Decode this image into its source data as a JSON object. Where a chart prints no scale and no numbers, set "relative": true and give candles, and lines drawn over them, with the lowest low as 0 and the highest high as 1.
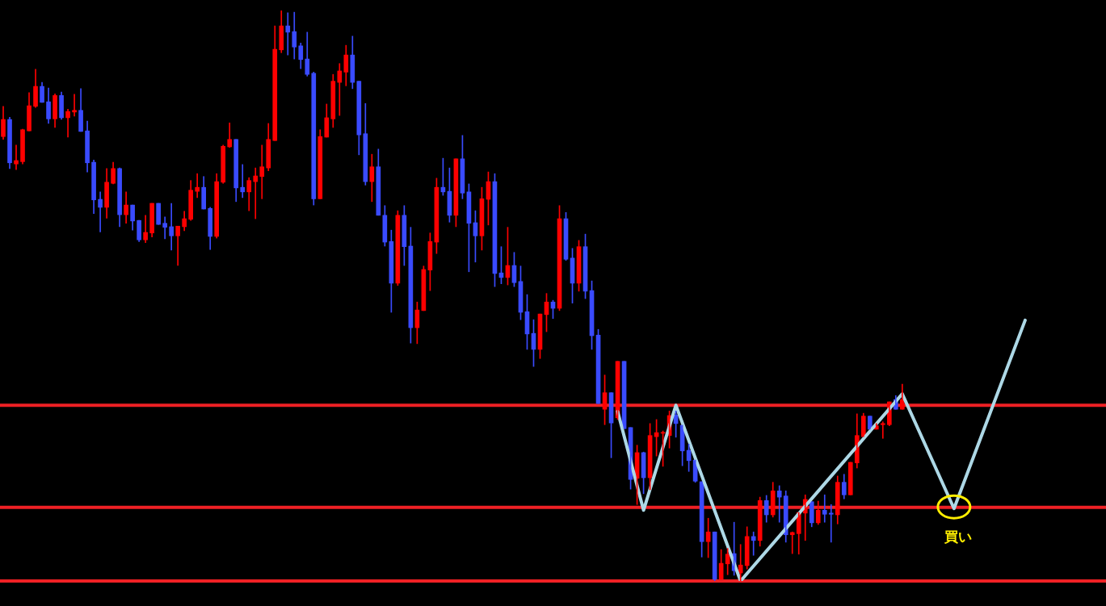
{
  "chart_data": {
    "type": "candlestick",
    "relative": true,
    "categories": [
      null,
      null,
      null,
      null,
      null,
      null,
      null,
      null,
      null,
      null,
      null,
      null,
      null,
      null,
      null,
      null,
      null,
      null,
      null,
      null,
      null,
      null,
      null,
      null,
      null,
      null,
      null,
      null,
      null,
      null,
      null,
      null,
      null,
      null,
      null,
      null,
      null,
      null,
      null,
      null,
      null,
      null,
      null,
      null,
      null,
      null,
      null,
      null,
      null,
      null,
      null,
      null,
      null,
      null,
      null,
      null,
      null,
      null,
      null,
      null,
      null,
      null,
      null,
      null,
      null,
      null,
      null,
      null,
      null,
      null,
      null,
      null,
      null,
      null,
      null,
      null,
      null,
      null,
      null,
      null,
      null,
      null,
      null,
      null,
      null,
      null,
      null,
      null,
      null,
      null,
      null,
      null,
      null,
      null,
      null,
      null,
      null,
      null,
      null,
      null,
      null,
      null,
      null,
      null,
      null,
      null,
      null,
      null,
      null,
      null,
      null,
      null,
      null,
      null,
      null,
      null,
      null,
      null,
      null,
      null,
      null,
      null,
      null,
      null,
      null,
      null,
      null,
      null,
      null,
      null,
      null,
      null,
      null,
      null,
      null,
      null,
      null,
      null,
      null,
      null,
      null,
      null,
      null,
      null,
      null,
      null,
      null,
      null,
      null,
      null,
      null,
      null,
      null,
      null,
      null,
      null,
      null,
      null,
      null,
      null,
      null,
      null,
      null,
      null,
      null,
      null,
      null,
      null,
      null,
      null,
      null
    ],
    "ohlc": [
      [
        0.779,
        0.832,
        0.774,
        0.809
      ],
      [
        0.809,
        0.813,
        0.723,
        0.733
      ],
      [
        0.731,
        0.764,
        0.721,
        0.737
      ],
      [
        0.735,
        0.792,
        0.731,
        0.791
      ],
      [
        0.789,
        0.856,
        0.789,
        0.833
      ],
      [
        0.832,
        0.897,
        0.83,
        0.867
      ],
      [
        0.867,
        0.874,
        0.839,
        0.839
      ],
      [
        0.84,
        0.864,
        0.802,
        0.81
      ],
      [
        0.81,
        0.854,
        0.795,
        0.851
      ],
      [
        0.851,
        0.857,
        0.809,
        0.812
      ],
      [
        0.812,
        0.827,
        0.778,
        0.823
      ],
      [
        0.822,
        0.853,
        0.815,
        0.825
      ],
      [
        0.825,
        0.863,
        0.788,
        0.788
      ],
      [
        0.789,
        0.806,
        0.717,
        0.733
      ],
      [
        0.734,
        0.738,
        0.644,
        0.668
      ],
      [
        0.669,
        0.682,
        0.612,
        0.655
      ],
      [
        0.655,
        0.723,
        0.636,
        0.699
      ],
      [
        0.697,
        0.734,
        0.696,
        0.723
      ],
      [
        0.723,
        0.724,
        0.621,
        0.642
      ],
      [
        0.642,
        0.682,
        0.627,
        0.659
      ],
      [
        0.659,
        0.659,
        0.615,
        0.631
      ],
      [
        0.632,
        0.632,
        0.595,
        0.598
      ],
      [
        0.598,
        0.641,
        0.593,
        0.611
      ],
      [
        0.61,
        0.662,
        0.603,
        0.662
      ],
      [
        0.662,
        0.662,
        0.625,
        0.625
      ],
      [
        0.627,
        0.638,
        0.6,
        0.62
      ],
      [
        0.621,
        0.662,
        0.58,
        0.605
      ],
      [
        0.605,
        0.622,
        0.553,
        0.622
      ],
      [
        0.621,
        0.648,
        0.614,
        0.635
      ],
      [
        0.634,
        0.702,
        0.632,
        0.685
      ],
      [
        0.683,
        0.714,
        0.672,
        0.69
      ],
      [
        0.69,
        0.709,
        0.652,
        0.652
      ],
      [
        0.653,
        0.655,
        0.581,
        0.604
      ],
      [
        0.604,
        0.714,
        0.601,
        0.7
      ],
      [
        0.699,
        0.764,
        0.697,
        0.762
      ],
      [
        0.761,
        0.803,
        0.76,
        0.774
      ],
      [
        0.774,
        0.774,
        0.665,
        0.689
      ],
      [
        0.69,
        0.73,
        0.672,
        0.682
      ],
      [
        0.682,
        0.707,
        0.649,
        0.702
      ],
      [
        0.7,
        0.724,
        0.635,
        0.71
      ],
      [
        0.709,
        0.764,
        0.67,
        0.726
      ],
      [
        0.724,
        0.802,
        0.719,
        0.774
      ],
      [
        0.772,
        0.973,
        0.772,
        0.932
      ],
      [
        0.931,
        1,
        0.926,
        0.973
      ],
      [
        0.973,
        0.996,
        0.922,
        0.962
      ],
      [
        0.963,
        0.997,
        0.915,
        0.936
      ],
      [
        0.938,
        0.943,
        0.898,
        0.914
      ],
      [
        0.915,
        0.962,
        0.885,
        0.888
      ],
      [
        0.89,
        0.892,
        0.659,
        0.67
      ],
      [
        0.67,
        0.791,
        0.67,
        0.779
      ],
      [
        0.778,
        0.836,
        0.778,
        0.812
      ],
      [
        0.81,
        0.888,
        0.795,
        0.876
      ],
      [
        0.874,
        0.907,
        0.816,
        0.894
      ],
      [
        0.892,
        0.939,
        0.868,
        0.922
      ],
      [
        0.922,
        0.955,
        0.863,
        0.874
      ],
      [
        0.876,
        0.876,
        0.747,
        0.782
      ],
      [
        0.784,
        0.837,
        0.694,
        0.7
      ],
      [
        0.7,
        0.748,
        0.665,
        0.726
      ],
      [
        0.726,
        0.757,
        0.641,
        0.641
      ],
      [
        0.641,
        0.658,
        0.587,
        0.594
      ],
      [
        0.595,
        0.615,
        0.471,
        0.522
      ],
      [
        0.522,
        0.649,
        0.518,
        0.641
      ],
      [
        0.641,
        0.658,
        0.553,
        0.586
      ],
      [
        0.587,
        0.62,
        0.417,
        0.444
      ],
      [
        0.444,
        0.489,
        0.416,
        0.475
      ],
      [
        0.474,
        0.552,
        0.474,
        0.546
      ],
      [
        0.545,
        0.61,
        0.509,
        0.595
      ],
      [
        0.594,
        0.706,
        0.574,
        0.69
      ],
      [
        0.69,
        0.741,
        0.676,
        0.682
      ],
      [
        0.683,
        0.724,
        0.629,
        0.641
      ],
      [
        0.641,
        0.74,
        0.621,
        0.74
      ],
      [
        0.74,
        0.781,
        0.67,
        0.68
      ],
      [
        0.682,
        0.696,
        0.542,
        0.627
      ],
      [
        0.628,
        0.649,
        0.559,
        0.605
      ],
      [
        0.605,
        0.69,
        0.58,
        0.67
      ],
      [
        0.669,
        0.717,
        0.624,
        0.7
      ],
      [
        0.7,
        0.714,
        0.516,
        0.539
      ],
      [
        0.54,
        0.586,
        0.521,
        0.532
      ],
      [
        0.532,
        0.62,
        0.519,
        0.553
      ],
      [
        0.553,
        0.576,
        0.516,
        0.523
      ],
      [
        0.525,
        0.552,
        0.458,
        0.471
      ],
      [
        0.472,
        0.502,
        0.406,
        0.433
      ],
      [
        0.434,
        0.458,
        0.376,
        0.406
      ],
      [
        0.406,
        0.468,
        0.39,
        0.468
      ],
      [
        0.467,
        0.504,
        0.437,
        0.489
      ],
      [
        0.489,
        0.492,
        0.46,
        0.478
      ],
      [
        0.478,
        0.658,
        0.474,
        0.635
      ],
      [
        0.635,
        0.646,
        0.562,
        0.564
      ],
      [
        0.566,
        0.583,
        0.487,
        0.522
      ],
      [
        0.522,
        0.597,
        0.508,
        0.586
      ],
      [
        0.586,
        0.608,
        0.495,
        0.508
      ],
      [
        0.509,
        0.526,
        0.406,
        0.43
      ],
      [
        0.431,
        0.441,
        0.311,
        0.311
      ],
      [
        0.301,
        0.361,
        0.274,
        0.33
      ],
      [
        0.33,
        0.33,
        0.216,
        0.277
      ],
      [
        0.286,
        0.385,
        0.283,
        0.385
      ],
      [
        0.385,
        0.385,
        0.267,
        0.267
      ],
      [
        0.269,
        0.269,
        0.161,
        0.178
      ],
      [
        0.18,
        0.238,
        0.134,
        0.225
      ],
      [
        0.225,
        0.226,
        0.153,
        0.181
      ],
      [
        0.181,
        0.276,
        0.16,
        0.255
      ],
      [
        0.253,
        0.283,
        0.219,
        0.26
      ],
      [
        0.259,
        0.263,
        0.201,
        0.26
      ],
      [
        0.255,
        0.298,
        0.233,
        0.29
      ],
      [
        0.291,
        0.298,
        0.252,
        0.276
      ],
      [
        0.273,
        0.273,
        0.202,
        0.228
      ],
      [
        0.229,
        0.24,
        0.192,
        0.211
      ],
      [
        0.212,
        0.212,
        0.173,
        0.175
      ],
      [
        0.174,
        0.174,
        0.042,
        0.069
      ],
      [
        0.069,
        0.11,
        0.041,
        0.086
      ],
      [
        0.086,
        0.086,
        0,
        0.003
      ],
      [
        0.003,
        0.055,
        0.003,
        0.031
      ],
      [
        0.03,
        0.057,
        0.011,
        0.047
      ],
      [
        0.048,
        0.103,
        0.01,
        0.018
      ],
      [
        0.014,
        0.064,
        0,
        0.028
      ],
      [
        0.027,
        0.095,
        0.021,
        0.078
      ],
      [
        0.078,
        0.086,
        0.045,
        0.071
      ],
      [
        0.071,
        0.147,
        0.061,
        0.141
      ],
      [
        0.141,
        0.15,
        0.103,
        0.116
      ],
      [
        0.116,
        0.173,
        0.112,
        0.158
      ],
      [
        0.158,
        0.167,
        0.103,
        0.147
      ],
      [
        0.149,
        0.158,
        0.068,
        0.081
      ],
      [
        0.081,
        0.086,
        0.048,
        0.085
      ],
      [
        0.083,
        0.12,
        0.047,
        0.12
      ],
      [
        0.119,
        0.151,
        0.071,
        0.143
      ],
      [
        0.139,
        0.139,
        0.095,
        0.102
      ],
      [
        0.102,
        0.14,
        0.099,
        0.124
      ],
      [
        0.124,
        0.151,
        0.103,
        0.117
      ],
      [
        0.119,
        0.134,
        0.068,
        0.117
      ],
      [
        0.116,
        0.184,
        0.1,
        0.173
      ],
      [
        0.173,
        0.187,
        0.144,
        0.151
      ],
      [
        0.151,
        0.208,
        0.151,
        0.208
      ],
      [
        0.207,
        0.293,
        0.198,
        0.255
      ],
      [
        0.253,
        0.294,
        0.253,
        0.289
      ],
      [
        0.289,
        0.289,
        0.266,
        0.266
      ],
      [
        0.266,
        0.276,
        0.266,
        0.272
      ],
      [
        0.274,
        0.279,
        0.25,
        0.276
      ],
      [
        0.274,
        0.314,
        0.272,
        0.314
      ],
      [
        0.318,
        0.325,
        0.301,
        0.301
      ],
      [
        0.301,
        0.345,
        0.301,
        0.318
      ],
      null,
      null,
      null,
      null,
      null,
      null,
      null,
      null,
      null,
      null,
      null,
      null,
      null,
      null,
      null,
      null,
      null,
      null,
      null,
      null,
      null,
      null,
      null,
      null,
      null,
      null,
      null,
      null,
      null,
      null,
      null
    ],
    "colors": [
      "#ff0000",
      "#3a4bff",
      "#ff0000",
      "#ff0000",
      "#ff0000",
      "#ff0000",
      "#3a4bff",
      "#3a4bff",
      "#ff0000",
      "#3a4bff",
      "#ff0000",
      "#ff0000",
      "#3a4bff",
      "#3a4bff",
      "#3a4bff",
      "#3a4bff",
      "#ff0000",
      "#ff0000",
      "#3a4bff",
      "#ff0000",
      "#3a4bff",
      "#3a4bff",
      "#ff0000",
      "#ff0000",
      "#3a4bff",
      "#3a4bff",
      "#3a4bff",
      "#ff0000",
      "#ff0000",
      "#ff0000",
      "#ff0000",
      "#3a4bff",
      "#3a4bff",
      "#ff0000",
      "#ff0000",
      "#ff0000",
      "#3a4bff",
      "#3a4bff",
      "#ff0000",
      "#ff0000",
      "#ff0000",
      "#ff0000",
      "#ff0000",
      "#ff0000",
      "#3a4bff",
      "#3a4bff",
      "#3a4bff",
      "#3a4bff",
      "#3a4bff",
      "#ff0000",
      "#ff0000",
      "#ff0000",
      "#ff0000",
      "#ff0000",
      "#3a4bff",
      "#3a4bff",
      "#3a4bff",
      "#ff0000",
      "#3a4bff",
      "#3a4bff",
      "#3a4bff",
      "#ff0000",
      "#3a4bff",
      "#3a4bff",
      "#ff0000",
      "#ff0000",
      "#ff0000",
      "#ff0000",
      "#3a4bff",
      "#3a4bff",
      "#ff0000",
      "#3a4bff",
      "#3a4bff",
      "#3a4bff",
      "#ff0000",
      "#ff0000",
      "#3a4bff",
      "#3a4bff",
      "#ff0000",
      "#3a4bff",
      "#3a4bff",
      "#3a4bff",
      "#3a4bff",
      "#ff0000",
      "#ff0000",
      "#3a4bff",
      "#ff0000",
      "#3a4bff",
      "#3a4bff",
      "#ff0000",
      "#3a4bff",
      "#3a4bff",
      "#3a4bff",
      "#ff0000",
      "#3a4bff",
      "#ff0000",
      "#3a4bff",
      "#3a4bff",
      "#ff0000",
      "#3a4bff",
      "#ff0000",
      "#ff0000",
      "#ff0000",
      "#ff0000",
      "#3a4bff",
      "#3a4bff",
      "#3a4bff",
      "#3a4bff",
      "#3a4bff",
      "#ff0000",
      "#3a4bff",
      "#ff0000",
      "#ff0000",
      "#3a4bff",
      "#ff0000",
      "#ff0000",
      "#3a4bff",
      "#ff0000",
      "#3a4bff",
      "#ff0000",
      "#3a4bff",
      "#3a4bff",
      "#ff0000",
      "#ff0000",
      "#ff0000",
      "#3a4bff",
      "#ff0000",
      "#3a4bff",
      "#3a4bff",
      "#ff0000",
      "#3a4bff",
      "#ff0000",
      "#ff0000",
      "#ff0000",
      "#3a4bff",
      "#ff0000",
      "#ff0000",
      "#ff0000",
      "#3a4bff",
      "#ff0000",
      null,
      null,
      null,
      null,
      null,
      null,
      null,
      null,
      null,
      null,
      null,
      null,
      null,
      null,
      null,
      null,
      null,
      null,
      null,
      null,
      null,
      null,
      null,
      null,
      null,
      null,
      null,
      null,
      null,
      null,
      null
    ],
    "series": [
      {
        "type": "line",
        "color": "#add8e6",
        "values": [
          null,
          null,
          null,
          null,
          null,
          null,
          null,
          null,
          null,
          null,
          null,
          null,
          null,
          null,
          null,
          null,
          null,
          null,
          null,
          null,
          null,
          null,
          null,
          null,
          null,
          null,
          null,
          null,
          null,
          null,
          null,
          null,
          null,
          null,
          null,
          null,
          null,
          null,
          null,
          null,
          null,
          null,
          null,
          null,
          null,
          null,
          null,
          null,
          null,
          null,
          null,
          null,
          null,
          null,
          null,
          null,
          null,
          null,
          null,
          null,
          null,
          null,
          null,
          null,
          null,
          null,
          null,
          null,
          null,
          null,
          null,
          null,
          null,
          null,
          null,
          null,
          null,
          null,
          null,
          null,
          null,
          null,
          null,
          null,
          null,
          null,
          null,
          null,
          null,
          null,
          null,
          null,
          null,
          null,
          null,
          0.297,
          null,
          null,
          null,
          0.124,
          null,
          null,
          null,
          null,
          0.308,
          null,
          null,
          null,
          null,
          null,
          null,
          null,
          null,
          null,
          0,
          null,
          null,
          null,
          null,
          null,
          null,
          null,
          null,
          null,
          null,
          null,
          null,
          null,
          null,
          null,
          null,
          null,
          null,
          null,
          null,
          null,
          null,
          null,
          null,
          0.328,
          null,
          null,
          null,
          null,
          null,
          null,
          null,
          0.127,
          null,
          null,
          null,
          null,
          null,
          null,
          null,
          null,
          null,
          null,
          0.457,
          null,
          null,
          null,
          null,
          null,
          null,
          null,
          null,
          null,
          null,
          null,
          null
        ]
      }
    ],
    "ref_lines": [
      {
        "axis": "y",
        "value": 0.308,
        "color": "#ee2024"
      },
      {
        "axis": "y",
        "value": 0.129,
        "color": "#ee2024"
      },
      {
        "axis": "y",
        "value": 0,
        "color": "#ee2024"
      }
    ],
    "annotations": [
      {
        "text": "買い",
        "y": 0.127
      }
    ]
  }
}
